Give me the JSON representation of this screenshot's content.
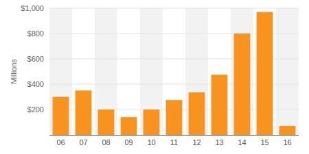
{
  "chart_data": {
    "type": "bar",
    "y_label": "Millions",
    "categories": [
      "06",
      "07",
      "08",
      "09",
      "10",
      "11",
      "12",
      "13",
      "14",
      "15",
      "16"
    ],
    "values": [
      300,
      350,
      200,
      140,
      200,
      275,
      335,
      475,
      800,
      970,
      70
    ],
    "color": "#f7931e",
    "ylim": [
      0,
      1000
    ],
    "yticks": [
      {
        "value": 200,
        "label": "$200"
      },
      {
        "value": 400,
        "label": "$400"
      },
      {
        "value": 600,
        "label": "$600"
      },
      {
        "value": 800,
        "label": "$800"
      },
      {
        "value": 1000,
        "label": "$1,000"
      }
    ],
    "grid": true
  }
}
